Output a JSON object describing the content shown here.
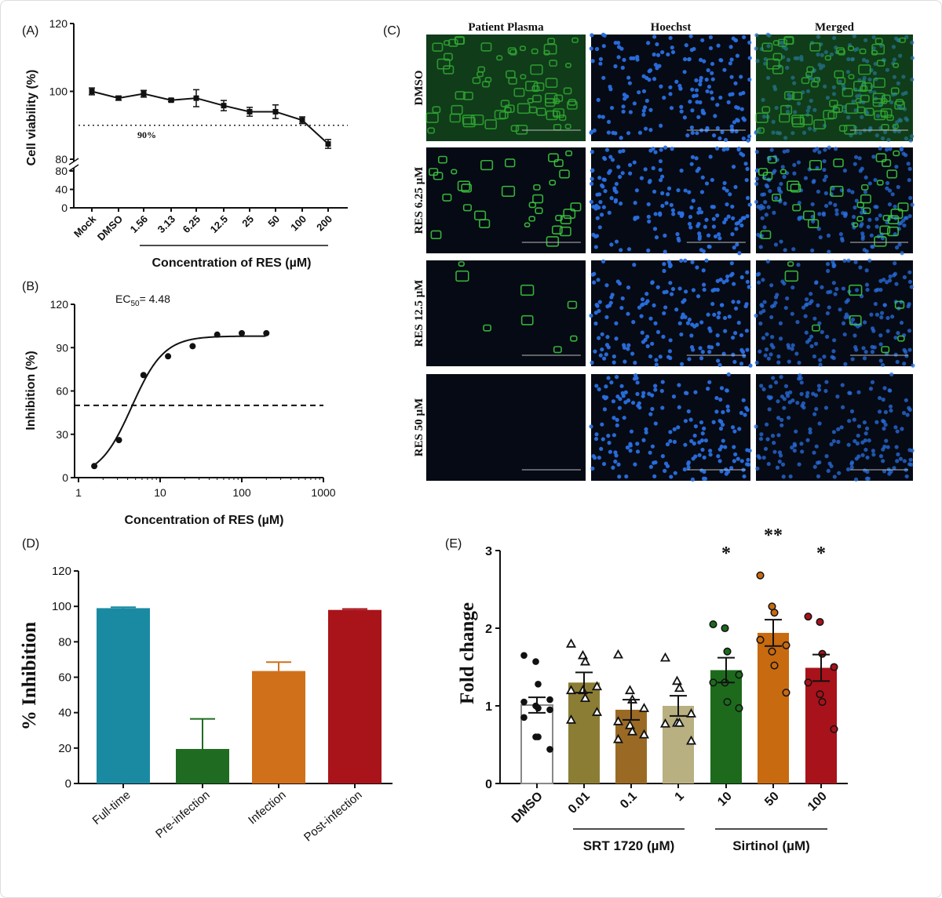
{
  "chart_data": [
    {
      "panel_label": "(A)",
      "type": "line",
      "ylabel": "Cell viability (%)",
      "xlabel": "Concentration of RES (µM)",
      "categories": [
        "Mock",
        "DMSO",
        "1.56",
        "3.13",
        "6.25",
        "12.5",
        "25",
        "50",
        "100",
        "200"
      ],
      "values": [
        100,
        98,
        99.3,
        97.4,
        98,
        95.8,
        94,
        94,
        91.5,
        84.5
      ],
      "errors": [
        1,
        0.6,
        1,
        0.4,
        2.5,
        1.5,
        1.3,
        2,
        1,
        1.3
      ],
      "y_ticks_upper": [
        "120",
        "100",
        "80"
      ],
      "y_ticks_lower": [
        "80",
        "40",
        "0"
      ],
      "ylim_upper": [
        80,
        120
      ],
      "ylim_lower": [
        0,
        80
      ],
      "axis_break": true,
      "reference_line": {
        "value": 90,
        "label": "90%",
        "style": "dotted"
      }
    },
    {
      "panel_label": "(B)",
      "type": "scatter",
      "ylabel": "Inhibition (%)",
      "xlabel": "Concentration of RES (µM)",
      "x_scale": "log",
      "xlim": [
        1,
        1000
      ],
      "ylim": [
        0,
        120
      ],
      "x_ticks": [
        "1",
        "10",
        "100",
        "1000"
      ],
      "y_ticks": [
        "0",
        "30",
        "60",
        "90",
        "120"
      ],
      "x": [
        1.56,
        3.13,
        6.25,
        12.5,
        25,
        50,
        100,
        200
      ],
      "y": [
        8,
        26,
        71,
        84,
        91,
        99,
        100,
        100
      ],
      "fit": {
        "type": "sigmoid",
        "ec50": 4.48,
        "bottom": 0,
        "top": 98,
        "hill": 2.2
      },
      "annotation_prefix": "EC",
      "annotation_sub": "50",
      "annotation_value": "= 4.48",
      "reference_line": {
        "value": 50,
        "style": "dashed"
      }
    },
    {
      "panel_label": "(D)",
      "type": "bar",
      "ylabel": "% Inhibition",
      "categories": [
        "Full-time",
        "Pre-infection",
        "Infection",
        "Post-infection"
      ],
      "values": [
        99,
        19.5,
        63.5,
        98
      ],
      "errors": [
        0.5,
        17,
        5,
        0.5
      ],
      "colors": [
        "#1a8aa3",
        "#1f6b22",
        "#d0701a",
        "#a8141a"
      ],
      "ylim": [
        0,
        120
      ],
      "y_ticks": [
        "0",
        "20",
        "40",
        "60",
        "80",
        "100",
        "120"
      ]
    },
    {
      "panel_label": "(E)",
      "type": "bar",
      "ylabel": "Fold change",
      "categories": [
        "DMSO",
        "0.01",
        "0.1",
        "1",
        "10",
        "50",
        "100"
      ],
      "group_labels": [
        {
          "label": "SRT 1720 (µM)",
          "from": 1,
          "to": 3
        },
        {
          "label": "Sirtinol (µM)",
          "from": 4,
          "to": 6
        }
      ],
      "values": [
        1.01,
        1.3,
        0.95,
        1.0,
        1.46,
        1.94,
        1.49
      ],
      "errors": [
        0.1,
        0.13,
        0.13,
        0.13,
        0.16,
        0.17,
        0.17
      ],
      "colors": [
        "#ffffff",
        "#8c7d35",
        "#9a6a25",
        "#b8b080",
        "#1d6a1d",
        "#c86a0f",
        "#a8121a"
      ],
      "point_markers": [
        "circle",
        "triangle",
        "triangle",
        "triangle",
        "circle",
        "circle",
        "circle"
      ],
      "points": [
        [
          1.65,
          1.57,
          1.28,
          1.08,
          1.05,
          1.0,
          0.97,
          0.95,
          0.85,
          0.6,
          0.6,
          0.44
        ],
        [
          1.8,
          1.65,
          1.57,
          1.25,
          1.2,
          1.2,
          1.1,
          0.92,
          0.82
        ],
        [
          1.66,
          1.2,
          1.08,
          0.97,
          0.8,
          0.75,
          0.67,
          0.63,
          0.57
        ],
        [
          1.62,
          1.32,
          1.23,
          0.9,
          0.77,
          0.78,
          0.78,
          0.55
        ],
        [
          2.05,
          2.0,
          1.7,
          1.4,
          1.3,
          1.3,
          1.05,
          0.97
        ],
        [
          2.68,
          2.28,
          2.2,
          1.78,
          1.85,
          1.7,
          1.52,
          1.17
        ],
        [
          2.15,
          2.08,
          1.67,
          1.5,
          1.3,
          1.15,
          1.05,
          0.7
        ]
      ],
      "significance": [
        "",
        "",
        "",
        "",
        "*",
        "**",
        "*"
      ],
      "ylim": [
        0,
        3
      ],
      "y_ticks": [
        "0",
        "1",
        "2",
        "3"
      ]
    }
  ],
  "panel_c": {
    "panel_label": "(C)",
    "columns": [
      "Patient Plasma",
      "Hoechst",
      "Merged"
    ],
    "rows": [
      {
        "label": "DMSO",
        "green_level": 1.0
      },
      {
        "label": "RES 6.25 µM",
        "green_level": 0.45
      },
      {
        "label": "RES 12.5 µM",
        "green_level": 0.12
      },
      {
        "label": "RES 50 µM",
        "green_level": 0.0
      }
    ],
    "colors": {
      "green": "#3fcf3f",
      "blue": "#2a6fe0",
      "background": "#050a14"
    }
  }
}
